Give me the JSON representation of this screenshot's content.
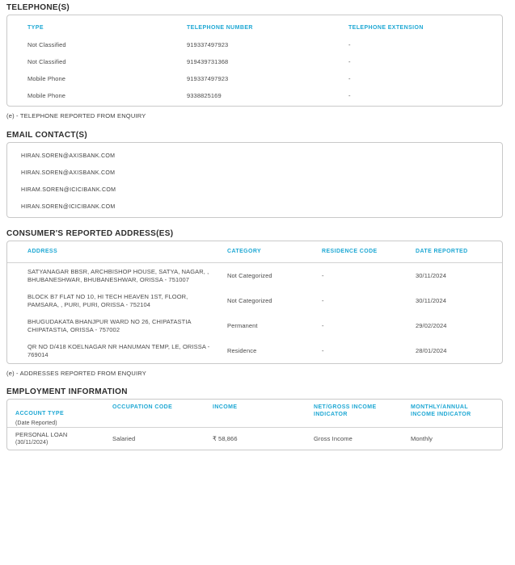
{
  "colors": {
    "accent": "#1fa8d4",
    "section_title": "#2c2c2c",
    "body_text": "#4b4b4b",
    "card_border": "#c9c9c9"
  },
  "telephone": {
    "title": "TELEPHONE(S)",
    "headers": [
      "TYPE",
      "TELEPHONE NUMBER",
      "TELEPHONE EXTENSION"
    ],
    "rows": [
      {
        "type": "Not Classified",
        "number": "919337497923",
        "extension": "-"
      },
      {
        "type": "Not Classified",
        "number": "919439731368",
        "extension": "-"
      },
      {
        "type": "Mobile Phone",
        "number": "919337497923",
        "extension": "-"
      },
      {
        "type": "Mobile Phone",
        "number": "9338825169",
        "extension": "-"
      }
    ],
    "footnote": "(e) - TELEPHONE REPORTED FROM ENQUIRY"
  },
  "email": {
    "title": "EMAIL CONTACT(S)",
    "items": [
      "HIRAN.SOREN@AXISBANK.COM",
      "HIRAN.SOREN@AXISBANK.COM",
      "HIRAM.SOREN@ICICIBANK.COM",
      "HIRAN.SOREN@ICICIBANK.COM"
    ]
  },
  "addresses": {
    "title": "CONSUMER'S REPORTED ADDRESS(ES)",
    "headers": [
      "ADDRESS",
      "CATEGORY",
      "RESIDENCE CODE",
      "DATE REPORTED"
    ],
    "rows": [
      {
        "address": "SATYANAGAR BBSR, ARCHBISHOP HOUSE, SATYA, NAGAR, , BHUBANESHWAR, BHUBANESHWAR, ORISSA - 751007",
        "category": "Not Categorized",
        "residence_code": "-",
        "date_reported": "30/11/2024"
      },
      {
        "address": "BLOCK B7 FLAT NO 10, HI TECH HEAVEN 1ST, FLOOR, PAMSARA, , PURI, PURI, ORISSA - 752104",
        "category": "Not Categorized",
        "residence_code": "-",
        "date_reported": "30/11/2024"
      },
      {
        "address": "BHUGUDAKATA BHANJPUR WARD NO 26, CHIPATASTIA CHIPATASTIA, ORISSA - 757002",
        "category": "Permanent",
        "residence_code": "-",
        "date_reported": "29/02/2024"
      },
      {
        "address": "QR NO D/418 KOELNAGAR NR HANUMAN TEMP, LE, ORISSA - 769014",
        "category": "Residence",
        "residence_code": "-",
        "date_reported": "28/01/2024"
      }
    ],
    "footnote": "(e) - ADDRESSES REPORTED FROM ENQUIRY"
  },
  "employment": {
    "title": "EMPLOYMENT INFORMATION",
    "headers": {
      "account_type": "ACCOUNT TYPE",
      "account_type_sub": "(Date Reported)",
      "occupation_code": "OCCUPATION CODE",
      "income": "INCOME",
      "net_gross": "NET/GROSS INCOME INDICATOR",
      "monthly_annual": "MONTHLY/ANNUAL INCOME INDICATOR"
    },
    "rows": [
      {
        "account_type": "PERSONAL LOAN",
        "date_reported": "(30/11/2024)",
        "occupation_code": "Salaried",
        "income": "₹ 58,866",
        "net_gross": "Gross Income",
        "monthly_annual": "Monthly"
      }
    ]
  }
}
